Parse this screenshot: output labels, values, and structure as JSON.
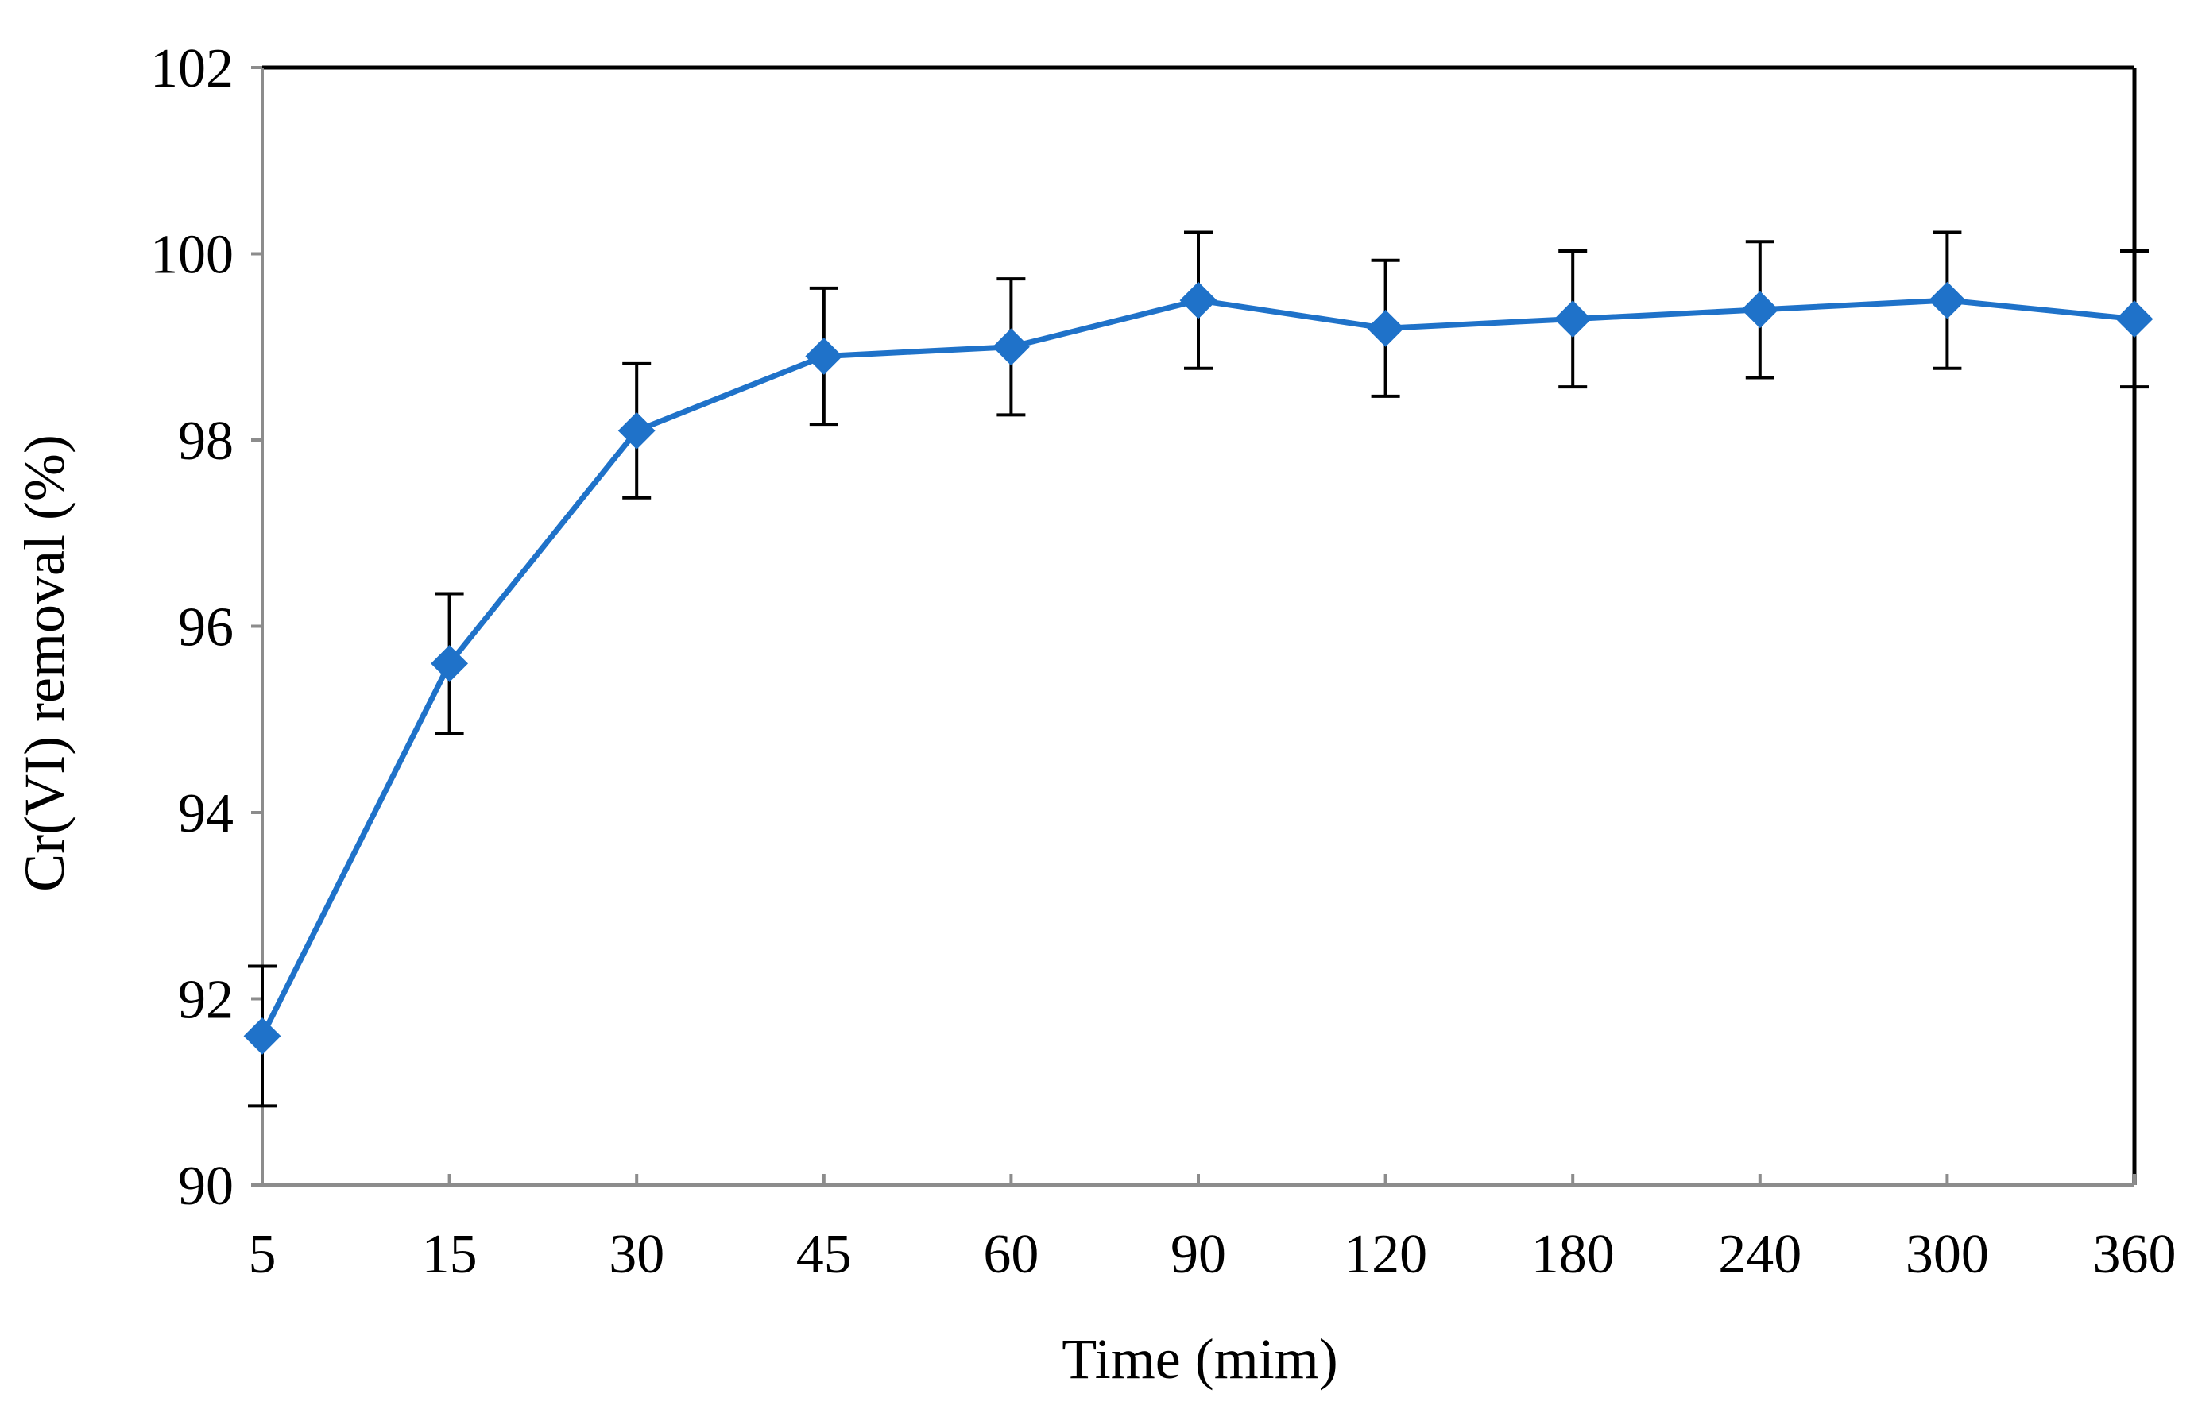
{
  "chart_data": {
    "type": "line",
    "title": "",
    "xlabel": "Time (mim)",
    "ylabel": "Cr(VI) removal (%)",
    "categories": [
      "5",
      "15",
      "30",
      "45",
      "60",
      "90",
      "120",
      "180",
      "240",
      "300",
      "360"
    ],
    "ylim": [
      90,
      102
    ],
    "yticks": [
      "90",
      "92",
      "94",
      "96",
      "98",
      "100",
      "102"
    ],
    "series": [
      {
        "name": "Cr(VI) removal",
        "color": "#1f72c9",
        "marker": "diamond",
        "values": [
          91.6,
          95.6,
          98.1,
          98.9,
          99.0,
          99.5,
          99.2,
          99.3,
          99.4,
          99.5,
          99.3
        ],
        "error": [
          0.75,
          0.75,
          0.72,
          0.73,
          0.73,
          0.73,
          0.73,
          0.73,
          0.73,
          0.73,
          0.73
        ]
      }
    ],
    "grid": false,
    "legend": "none"
  }
}
